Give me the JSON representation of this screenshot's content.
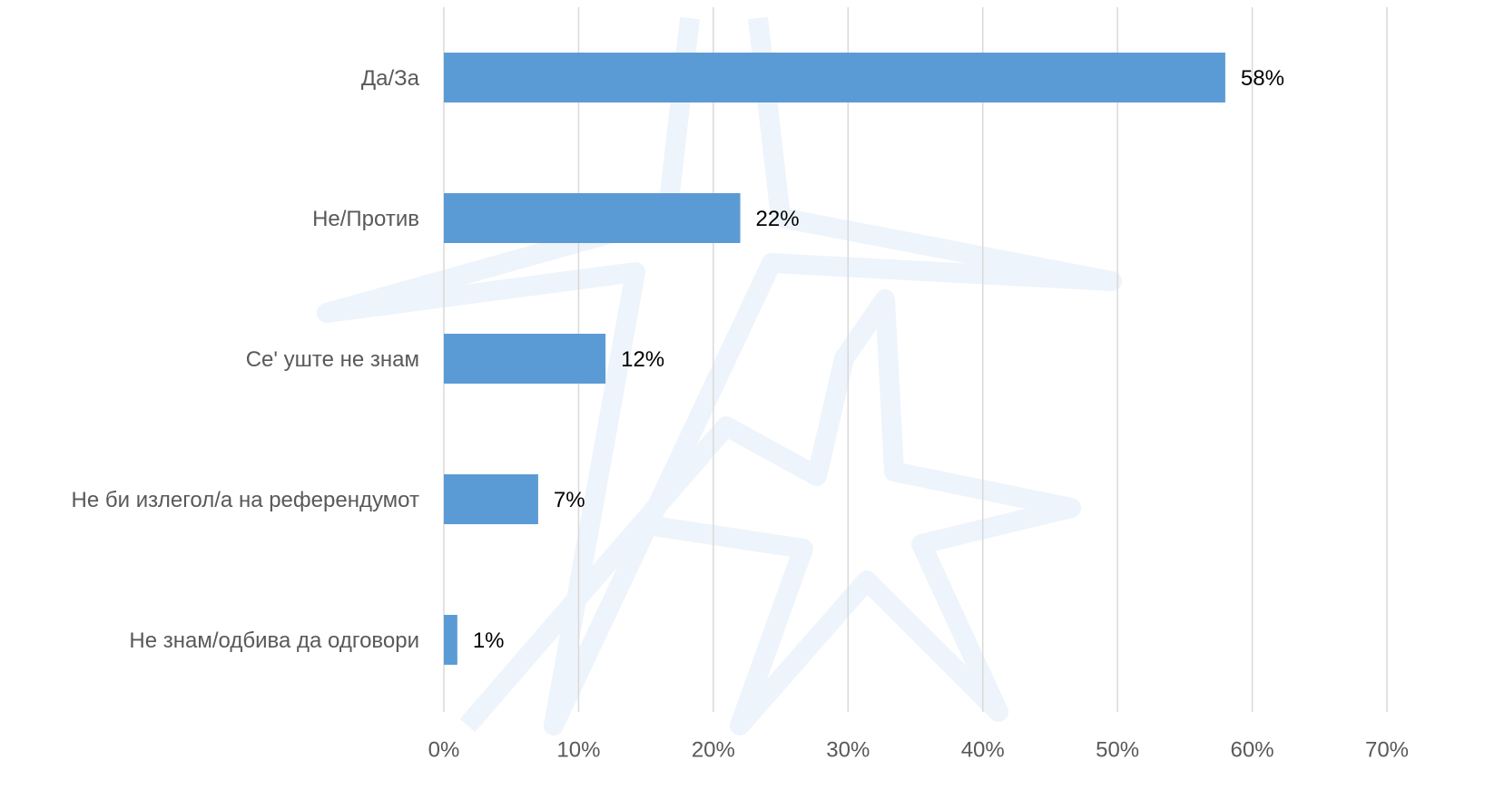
{
  "chart_data": {
    "type": "bar",
    "orientation": "horizontal",
    "categories": [
      "Да/За",
      "Не/Против",
      "Се' уште не знам",
      "Не би излегол/а на референдумот",
      "Не знам/одбива да одговори"
    ],
    "values": [
      58,
      22,
      12,
      7,
      1
    ],
    "value_labels": [
      "58%",
      "22%",
      "12%",
      "7%",
      "1%"
    ],
    "color": "#5b9bd5",
    "xlim": [
      0,
      70
    ],
    "xticks": [
      {
        "value": 0,
        "label": "0%"
      },
      {
        "value": 10,
        "label": "10%"
      },
      {
        "value": 20,
        "label": "20%"
      },
      {
        "value": 30,
        "label": "30%"
      },
      {
        "value": 40,
        "label": "40%"
      },
      {
        "value": 50,
        "label": "50%"
      },
      {
        "value": 60,
        "label": "60%"
      },
      {
        "value": 70,
        "label": "70%"
      }
    ],
    "grid": true
  }
}
